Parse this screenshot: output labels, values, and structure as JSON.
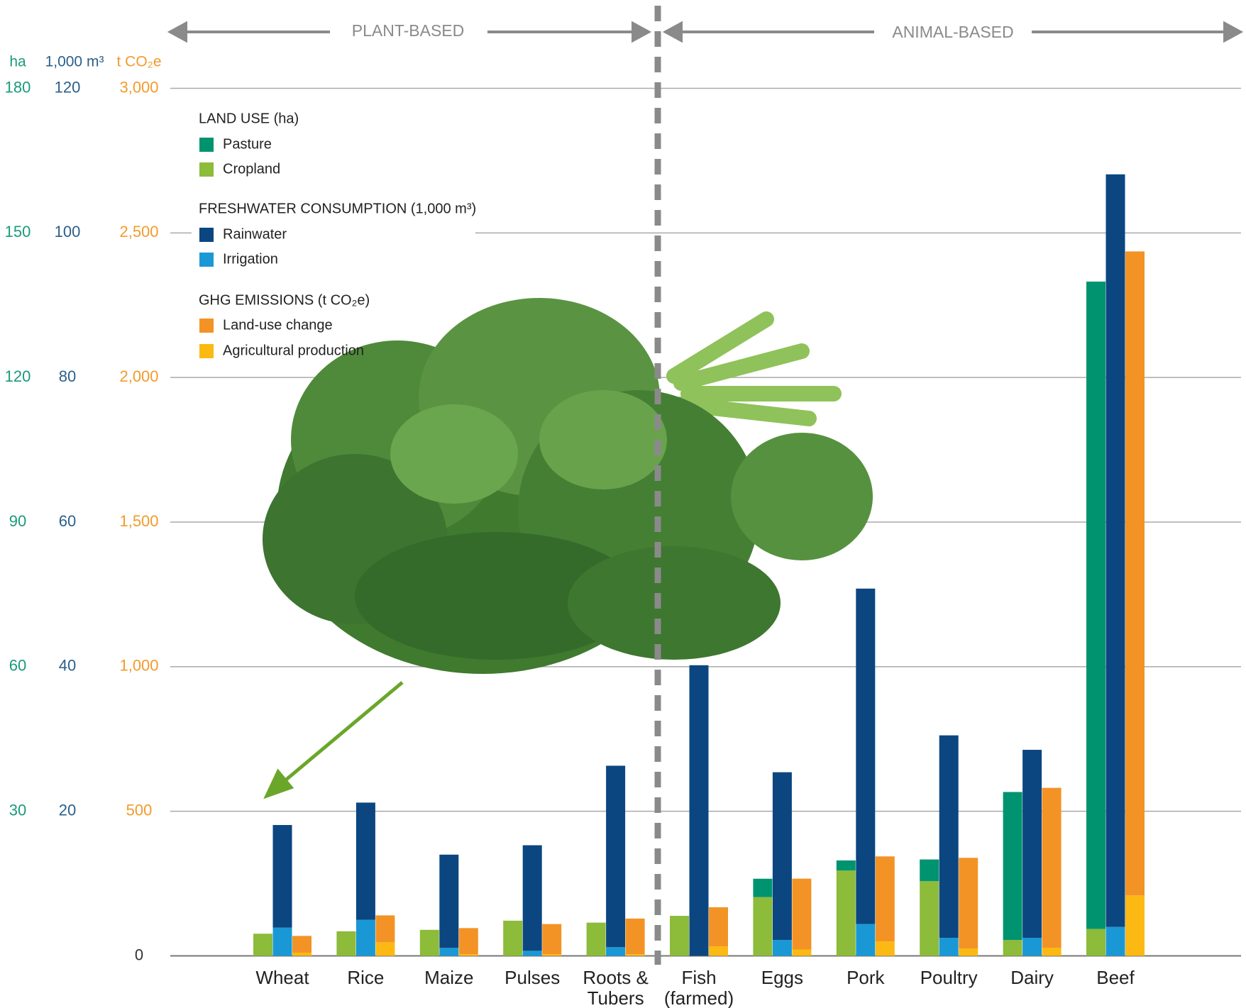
{
  "chart_data": {
    "type": "grouped-stacked-bar",
    "sections": [
      "PLANT-BASED",
      "ANIMAL-BASED"
    ],
    "axis_units": [
      "ha",
      "1,000 m³",
      "t CO₂e"
    ],
    "legend_titles": [
      "LAND USE (ha)",
      "FRESHWATER CONSUMPTION (1,000 m³)",
      "GHG EMISSIONS (t CO₂e)"
    ],
    "categories": [
      "Wheat",
      "Rice",
      "Maize",
      "Pulses",
      "Roots &\nTubers",
      "Fish\n(farmed)",
      "Eggs",
      "Pork",
      "Poultry",
      "Dairy",
      "Beef"
    ],
    "series": [
      {
        "name": "Pasture",
        "color": "#00936f",
        "axis": "y",
        "values": [
          0,
          0,
          0,
          0,
          0,
          0,
          3.8,
          2.1,
          4.5,
          30.7,
          134.3
        ]
      },
      {
        "name": "Cropland",
        "color": "#8dbb3a",
        "axis": "y",
        "values": [
          4.6,
          5.1,
          5.4,
          7.3,
          6.9,
          8.3,
          12.2,
          17.7,
          15.5,
          3.3,
          5.6
        ]
      },
      {
        "name": "Rainwater",
        "color": "#0b4680",
        "axis": "y2",
        "values": [
          14.2,
          16.2,
          12.9,
          14.6,
          25.1,
          40.2,
          23.2,
          46.4,
          28.0,
          26.0,
          104.1
        ]
      },
      {
        "name": "Irrigation",
        "color": "#1a98d5",
        "axis": "y2",
        "values": [
          3.9,
          5.0,
          1.1,
          0.7,
          1.2,
          0,
          2.2,
          4.4,
          2.5,
          2.5,
          4.0
        ]
      },
      {
        "name": "Land-use change",
        "color": "#f39325",
        "axis": "y3",
        "values": [
          58,
          93,
          90,
          104,
          123,
          135,
          245,
          294,
          314,
          553,
          2227
        ]
      },
      {
        "name": "Agricultural production",
        "color": "#fcb813",
        "axis": "y3",
        "values": [
          11,
          47,
          6,
          6,
          6,
          33,
          22,
          50,
          25,
          28,
          209
        ]
      }
    ],
    "ylim": [
      0,
      180
    ],
    "yticks": [
      30,
      60,
      90,
      120,
      150,
      180
    ],
    "y2lim": [
      0,
      120
    ],
    "y2ticks": [
      20,
      40,
      60,
      80,
      100,
      120
    ],
    "y3lim": [
      0,
      3000
    ],
    "y3ticks": [
      0,
      500,
      {
        "value": 1000,
        "label": "1,000"
      },
      {
        "value": 1500,
        "label": "1,500"
      },
      {
        "value": 2000,
        "label": "2,000"
      },
      {
        "value": 2500,
        "label": "2,500"
      },
      {
        "value": 3000,
        "label": "3,000"
      }
    ],
    "axis_colors": [
      "#1a9a7a",
      "#2b5f8a",
      "#f39b2a"
    ],
    "grid": true
  }
}
